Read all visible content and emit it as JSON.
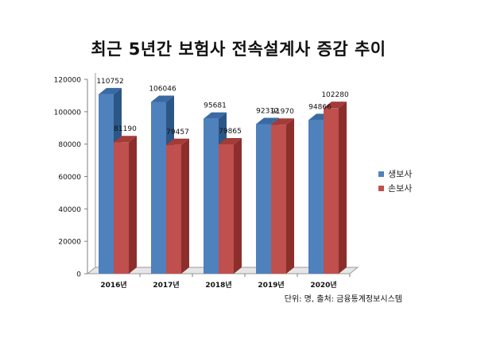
{
  "chart_data": {
    "type": "bar",
    "style": "3d-clustered",
    "title": "최근 5년간 보험사 전속설계사 증감 추이",
    "categories": [
      "2016년",
      "2017년",
      "2018년",
      "2019년",
      "2020년"
    ],
    "series": [
      {
        "name": "생보사",
        "color": "#4f81bd",
        "values": [
          110752,
          106046,
          95681,
          92312,
          94866
        ]
      },
      {
        "name": "손보사",
        "color": "#c0504d",
        "values": [
          81190,
          79457,
          79865,
          91970,
          102280
        ]
      }
    ],
    "y_ticks": [
      "0",
      "20000",
      "40000",
      "60000",
      "80000",
      "100000",
      "120000"
    ],
    "ylim": [
      0,
      120000
    ],
    "data_labels": true,
    "legend_position": "right",
    "source_note": "단위: 명, 출처: 금융통계정보시스템"
  }
}
